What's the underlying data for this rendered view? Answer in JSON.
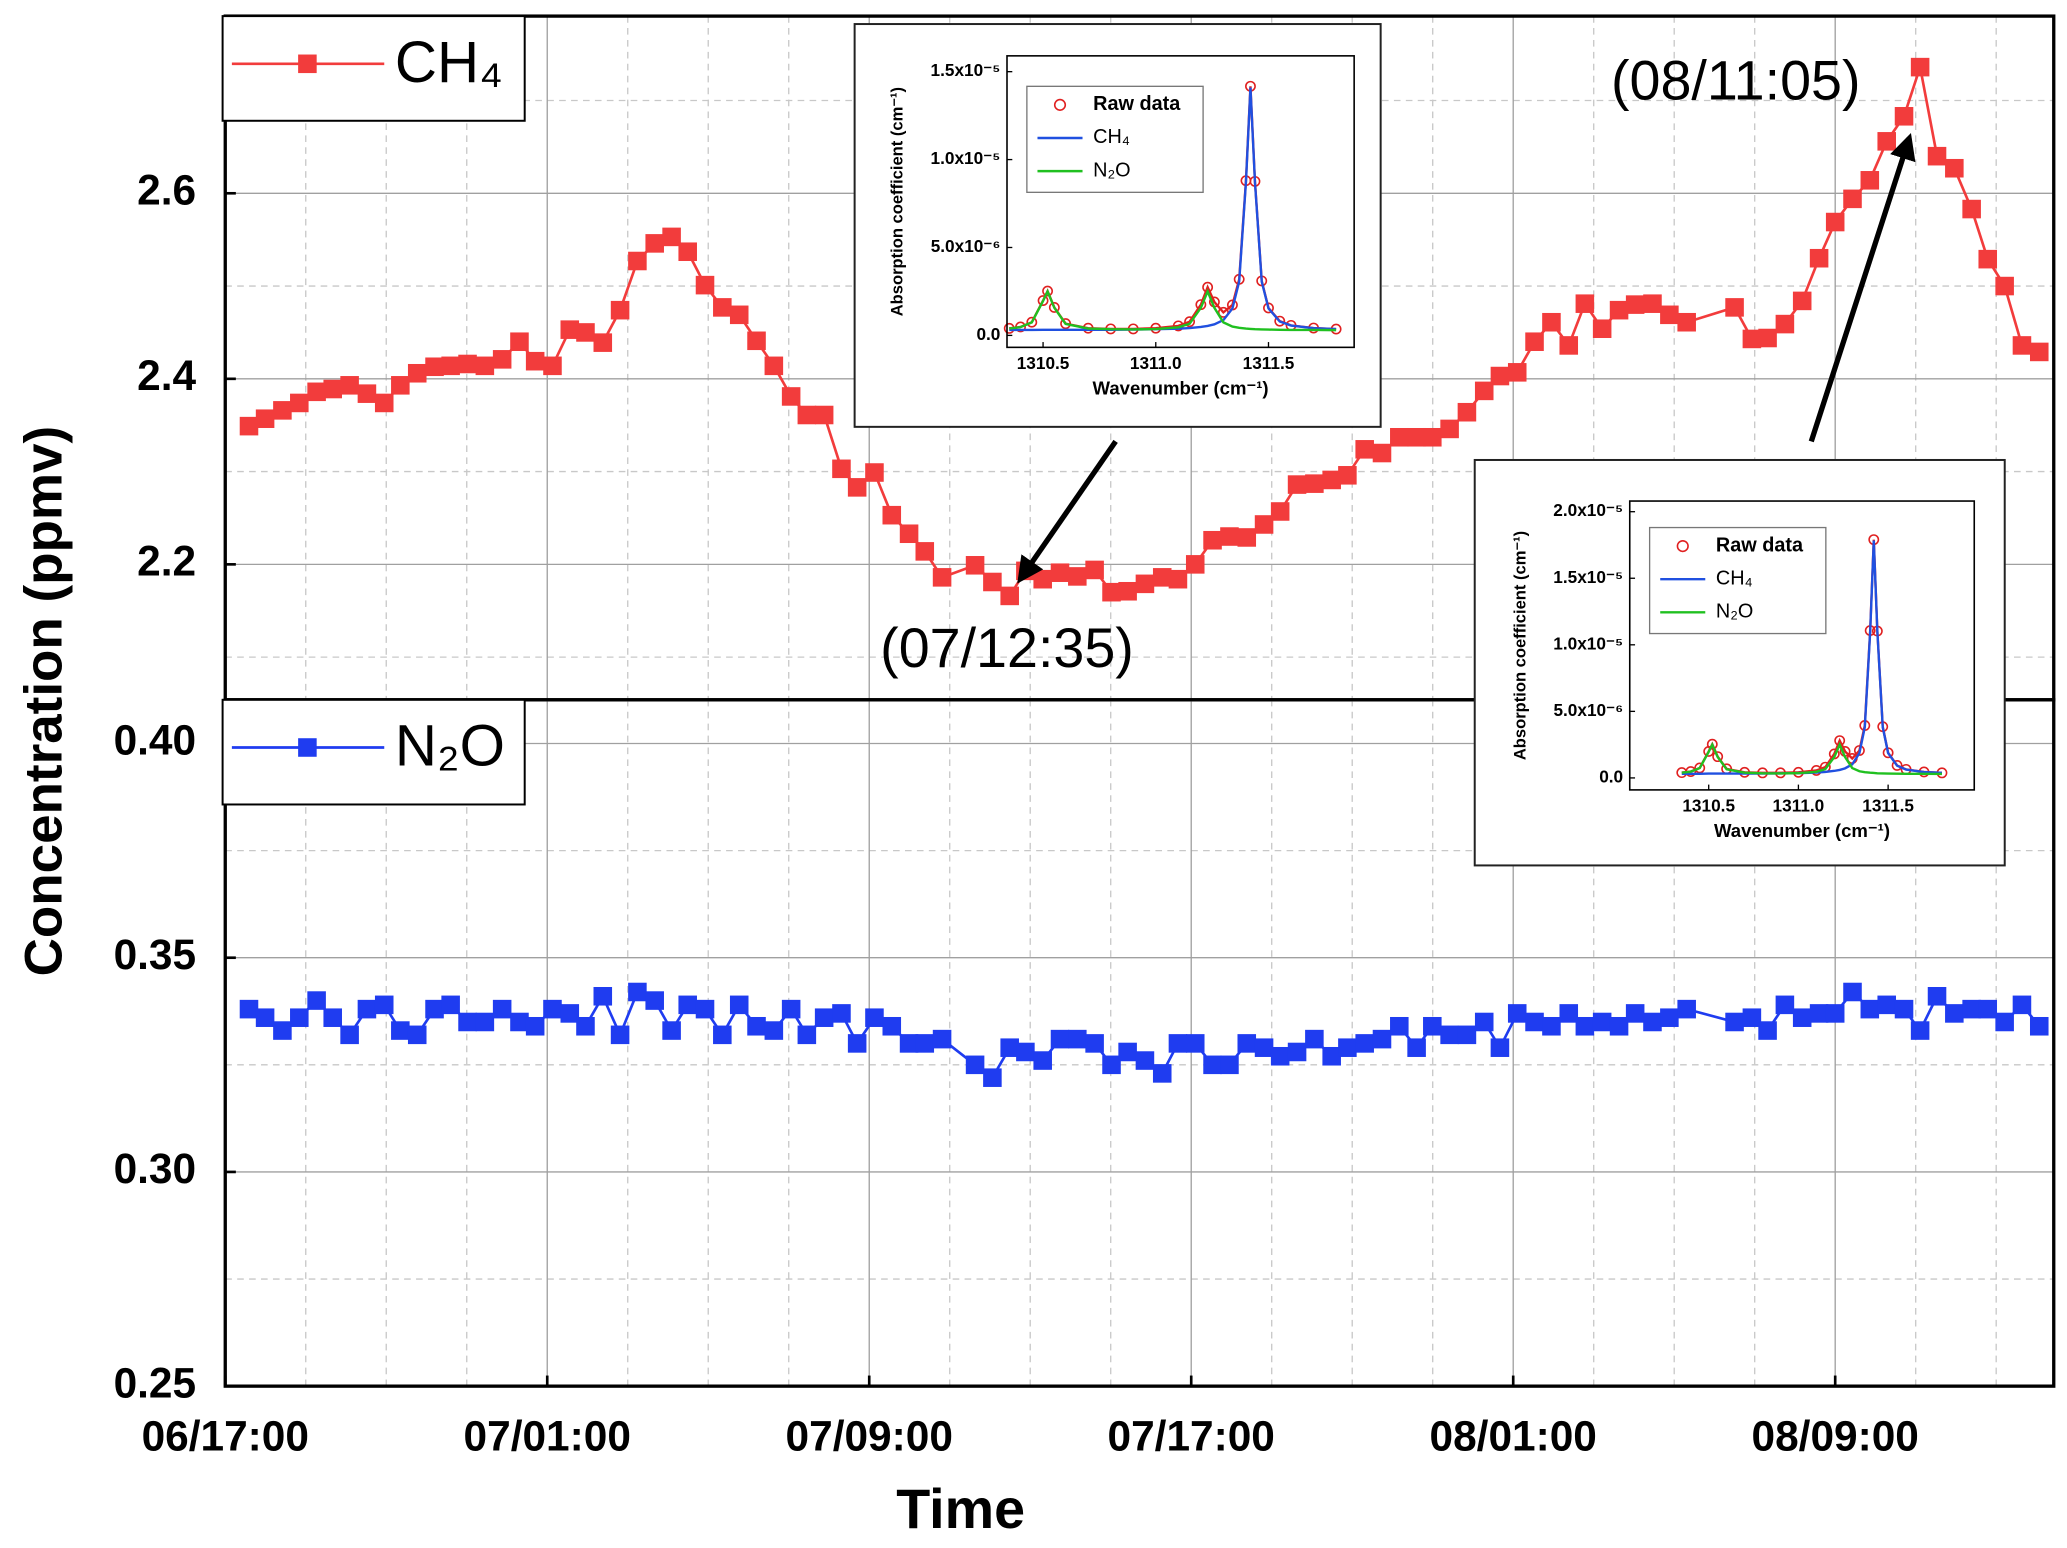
{
  "chart_data": [
    {
      "type": "line",
      "ylabel": "Concentration (ppmv)",
      "ylim": [
        2.054,
        2.791
      ],
      "yticks": [
        2.2,
        2.4,
        2.6
      ],
      "minor_yticks": [
        2.1,
        2.3,
        2.5,
        2.7
      ],
      "xlim": [
        0,
        45.43
      ],
      "grid": true,
      "legend": "upper left",
      "annotations": [
        "(07/12:35)",
        "(08/11:05)"
      ],
      "x": [
        0.59,
        0.99,
        1.42,
        1.84,
        2.27,
        2.67,
        3.09,
        3.52,
        3.95,
        4.35,
        4.77,
        5.2,
        5.6,
        6.02,
        6.45,
        6.88,
        7.31,
        7.7,
        8.13,
        8.56,
        8.95,
        9.38,
        9.81,
        10.24,
        10.67,
        11.09,
        11.49,
        11.92,
        12.35,
        12.77,
        13.2,
        13.63,
        14.06,
        14.45,
        14.88,
        15.31,
        15.7,
        16.13,
        16.56,
        16.99,
        17.38,
        17.81,
        18.63,
        19.06,
        19.49,
        19.88,
        20.31,
        20.74,
        21.17,
        21.6,
        22.02,
        22.42,
        22.85,
        23.28,
        23.67,
        24.1,
        24.53,
        24.95,
        25.38,
        25.81,
        26.21,
        26.63,
        27.06,
        27.49,
        27.88,
        28.31,
        28.74,
        29.17,
        29.6,
        29.99,
        30.42,
        30.85,
        31.28,
        31.67,
        32.1,
        32.53,
        32.95,
        33.38,
        33.78,
        34.21,
        34.63,
        35.03,
        35.46,
        35.88,
        36.31,
        37.5,
        37.93,
        38.32,
        38.75,
        39.18,
        39.6,
        40.0,
        40.43,
        40.86,
        41.28,
        41.71,
        42.11,
        42.53,
        42.96,
        43.39,
        43.79,
        44.21,
        44.64,
        45.07
      ],
      "series": [
        {
          "name": "CH₄",
          "color": "#f23c3c",
          "marker": "square",
          "values": [
            2.349,
            2.357,
            2.366,
            2.374,
            2.386,
            2.389,
            2.393,
            2.384,
            2.374,
            2.393,
            2.406,
            2.413,
            2.414,
            2.416,
            2.414,
            2.421,
            2.44,
            2.419,
            2.414,
            2.453,
            2.45,
            2.439,
            2.474,
            2.527,
            2.546,
            2.553,
            2.537,
            2.501,
            2.477,
            2.469,
            2.441,
            2.414,
            2.381,
            2.361,
            2.361,
            2.303,
            2.283,
            2.299,
            2.253,
            2.233,
            2.214,
            2.186,
            2.199,
            2.181,
            2.166,
            2.193,
            2.184,
            2.191,
            2.187,
            2.194,
            2.17,
            2.171,
            2.179,
            2.186,
            2.184,
            2.2,
            2.226,
            2.23,
            2.229,
            2.243,
            2.257,
            2.286,
            2.287,
            2.291,
            2.296,
            2.324,
            2.32,
            2.337,
            2.337,
            2.337,
            2.346,
            2.364,
            2.387,
            2.403,
            2.407,
            2.44,
            2.461,
            2.436,
            2.481,
            2.454,
            2.474,
            2.48,
            2.481,
            2.469,
            2.461,
            2.477,
            2.443,
            2.444,
            2.459,
            2.484,
            2.53,
            2.569,
            2.594,
            2.614,
            2.656,
            2.683,
            2.736,
            2.64,
            2.627,
            2.583,
            2.529,
            2.5,
            2.436,
            2.429
          ]
        }
      ]
    },
    {
      "type": "line",
      "xlabel": "Time",
      "ylim": [
        0.25,
        0.4102
      ],
      "yticks": [
        0.25,
        {
          "value": 0.3,
          "label": "0.30"
        },
        0.35,
        {
          "value": 0.4,
          "label": "0.40"
        }
      ],
      "minor_yticks": [
        0.275,
        0.325,
        0.375
      ],
      "xlim": [
        0,
        45.43
      ],
      "xticks": [
        {
          "value": 0,
          "label": "06/17:00"
        },
        {
          "value": 8,
          "label": "07/01:00"
        },
        {
          "value": 16,
          "label": "07/09:00"
        },
        {
          "value": 24,
          "label": "07/17:00"
        },
        {
          "value": 32,
          "label": "08/01:00"
        },
        {
          "value": 40,
          "label": "08/09:00"
        }
      ],
      "minor_xticks": [
        2,
        4,
        6,
        10,
        12,
        14,
        18,
        20,
        22,
        26,
        28,
        30,
        34,
        36,
        38,
        42,
        44
      ],
      "grid": true,
      "legend": "upper left",
      "x": [
        0.59,
        0.99,
        1.42,
        1.84,
        2.27,
        2.67,
        3.09,
        3.52,
        3.95,
        4.35,
        4.77,
        5.2,
        5.6,
        6.02,
        6.45,
        6.88,
        7.31,
        7.7,
        8.13,
        8.56,
        8.95,
        9.38,
        9.81,
        10.24,
        10.67,
        11.09,
        11.49,
        11.92,
        12.35,
        12.77,
        13.2,
        13.63,
        14.06,
        14.45,
        14.88,
        15.31,
        15.7,
        16.13,
        16.56,
        16.99,
        17.38,
        17.81,
        18.63,
        19.06,
        19.49,
        19.88,
        20.31,
        20.74,
        21.17,
        21.6,
        22.02,
        22.42,
        22.85,
        23.28,
        23.67,
        24.1,
        24.53,
        24.95,
        25.38,
        25.81,
        26.21,
        26.63,
        27.06,
        27.49,
        27.88,
        28.31,
        28.74,
        29.17,
        29.6,
        29.99,
        30.42,
        30.85,
        31.28,
        31.67,
        32.1,
        32.53,
        32.95,
        33.38,
        33.78,
        34.21,
        34.63,
        35.03,
        35.46,
        35.88,
        36.31,
        37.5,
        37.93,
        38.32,
        38.75,
        39.18,
        39.6,
        40.0,
        40.43,
        40.86,
        41.28,
        41.71,
        42.11,
        42.53,
        42.96,
        43.39,
        43.79,
        44.21,
        44.64,
        45.07
      ],
      "series": [
        {
          "name": "N₂O",
          "color": "#1f3cf0",
          "marker": "square",
          "values": [
            0.338,
            0.336,
            0.333,
            0.336,
            0.34,
            0.336,
            0.332,
            0.338,
            0.339,
            0.333,
            0.332,
            0.338,
            0.339,
            0.335,
            0.335,
            0.338,
            0.335,
            0.334,
            0.338,
            0.337,
            0.334,
            0.341,
            0.332,
            0.342,
            0.34,
            0.333,
            0.339,
            0.338,
            0.332,
            0.339,
            0.334,
            0.333,
            0.338,
            0.332,
            0.336,
            0.337,
            0.33,
            0.336,
            0.334,
            0.33,
            0.33,
            0.331,
            0.325,
            0.322,
            0.329,
            0.328,
            0.326,
            0.331,
            0.331,
            0.33,
            0.325,
            0.328,
            0.326,
            0.323,
            0.33,
            0.33,
            0.325,
            0.325,
            0.33,
            0.329,
            0.327,
            0.328,
            0.331,
            0.327,
            0.329,
            0.33,
            0.331,
            0.334,
            0.329,
            0.334,
            0.332,
            0.332,
            0.335,
            0.329,
            0.337,
            0.335,
            0.334,
            0.337,
            0.334,
            0.335,
            0.334,
            0.337,
            0.335,
            0.336,
            0.338,
            0.335,
            0.336,
            0.333,
            0.339,
            0.336,
            0.337,
            0.337,
            0.342,
            0.338,
            0.339,
            0.338,
            0.333,
            0.341,
            0.337,
            0.338,
            0.338,
            0.335,
            0.339,
            0.334
          ]
        }
      ]
    },
    {
      "type": "line",
      "xlabel": "Wavenumber (cm⁻¹)",
      "ylabel": "Absorption coefficient (cm⁻¹)",
      "xlim": [
        1310.34,
        1311.88
      ],
      "ylim": [
        -6.8e-07,
        1.59e-05
      ],
      "legend": "upper left",
      "xticks": [
        1310.5,
        {
          "value": 1311,
          "label": "1311.0"
        },
        1311.5
      ],
      "yticks": [
        {
          "value": 0,
          "label": "0.0"
        },
        {
          "value": 5e-06,
          "label": "5.0x10⁻⁶"
        },
        {
          "value": 1e-05,
          "label": "1.0x10⁻⁵"
        },
        {
          "value": 1.5e-05,
          "label": "1.5x10⁻⁵"
        }
      ],
      "x": [
        1310.35,
        1310.4,
        1310.45,
        1310.5,
        1310.52,
        1310.55,
        1310.6,
        1310.7,
        1310.8,
        1310.9,
        1311.0,
        1311.1,
        1311.15,
        1311.2,
        1311.23,
        1311.26,
        1311.3,
        1311.34,
        1311.37,
        1311.4,
        1311.42,
        1311.44,
        1311.47,
        1311.5,
        1311.55,
        1311.6,
        1311.7,
        1311.8
      ],
      "series": [
        {
          "name": "Raw data",
          "color": "#e02020",
          "marker": "circle",
          "values": [
            4e-07,
            4.8e-07,
            7.5e-07,
            1.98e-06,
            2.52e-06,
            1.59e-06,
            6.7e-07,
            4.1e-07,
            3.7e-07,
            3.7e-07,
            4.1e-07,
            5.4e-07,
            7.8e-07,
            1.75e-06,
            2.74e-06,
            1.9e-06,
            1.31e-06,
            1.73e-06,
            3.19e-06,
            8.8e-06,
            1.417e-05,
            8.76e-06,
            3.1e-06,
            1.56e-06,
            8.1e-07,
            5.7e-07,
            4.2e-07,
            3.6e-07
          ]
        },
        {
          "name": "CH₄",
          "color": "#2050e0",
          "values": [
            3.1e-07,
            3.1e-07,
            3.1e-07,
            3.2e-07,
            3.2e-07,
            3.2e-07,
            3.2e-07,
            3.2e-07,
            3.2e-07,
            3.3e-07,
            3.5e-07,
            3.8e-07,
            4.2e-07,
            4.8e-07,
            5.4e-07,
            6.3e-07,
            8.7e-07,
            1.53e-06,
            3.06e-06,
            8.71e-06,
            1.41e-05,
            8.71e-06,
            3.06e-06,
            1.53e-06,
            7.9e-07,
            5.6e-07,
            4.1e-07,
            3.6e-07
          ]
        },
        {
          "name": "N₂O",
          "color": "#20c020",
          "values": [
            3.9e-07,
            4.7e-07,
            7.4e-07,
            1.96e-06,
            2.5e-06,
            1.57e-06,
            6.5e-07,
            3.9e-07,
            3.5e-07,
            3.4e-07,
            3.6e-07,
            4.6e-07,
            6.6e-07,
            1.57e-06,
            2.5e-06,
            1.57e-06,
            7.4e-07,
            5e-07,
            4.3e-07,
            3.9e-07,
            3.7e-07,
            3.5e-07,
            3.4e-07,
            3.3e-07,
            3.2e-07,
            3.1e-07,
            3.1e-07,
            3e-07
          ]
        }
      ]
    },
    {
      "type": "line",
      "xlabel": "Wavenumber (cm⁻¹)",
      "ylabel": "Absorption coefficient (cm⁻¹)",
      "xlim": [
        1310.06,
        1311.98
      ],
      "ylim": [
        -9e-07,
        2.08e-05
      ],
      "legend": "upper left",
      "xticks": [
        1310.5,
        {
          "value": 1311,
          "label": "1311.0"
        },
        1311.5
      ],
      "yticks": [
        {
          "value": 0,
          "label": "0.0"
        },
        {
          "value": 5e-06,
          "label": "5.0x10⁻⁶"
        },
        {
          "value": 1e-05,
          "label": "1.0x10⁻⁵"
        },
        {
          "value": 1.5e-05,
          "label": "1.5x10⁻⁵"
        },
        {
          "value": 2e-05,
          "label": "2.0x10⁻⁵"
        }
      ],
      "x": [
        1310.35,
        1310.4,
        1310.45,
        1310.5,
        1310.52,
        1310.55,
        1310.6,
        1310.7,
        1310.8,
        1310.9,
        1311.0,
        1311.1,
        1311.15,
        1311.2,
        1311.23,
        1311.26,
        1311.3,
        1311.34,
        1311.37,
        1311.4,
        1311.42,
        1311.44,
        1311.47,
        1311.5,
        1311.55,
        1311.6,
        1311.7,
        1311.8
      ],
      "series": [
        {
          "name": "Raw data",
          "color": "#e02020",
          "marker": "circle",
          "values": [
            4e-07,
            4.8e-07,
            7.5e-07,
            1.99e-06,
            2.53e-06,
            1.6e-06,
            6.8e-07,
            4.2e-07,
            3.8e-07,
            3.8e-07,
            4.2e-07,
            5.6e-07,
            8.1e-07,
            1.8e-06,
            2.8e-06,
            1.99e-06,
            1.46e-06,
            2.06e-06,
            3.94e-06,
            1.107e-05,
            1.79e-05,
            1.103e-05,
            3.85e-06,
            1.89e-06,
            9.4e-07,
            6.4e-07,
            4.5e-07,
            3.8e-07
          ]
        },
        {
          "name": "CH₄",
          "color": "#2050e0",
          "values": [
            3.1e-07,
            3.1e-07,
            3.1e-07,
            3.3e-07,
            3.3e-07,
            3.3e-07,
            3.3e-07,
            3.3e-07,
            3.3e-07,
            3.4e-07,
            3.6e-07,
            4e-07,
            4.5e-07,
            5.3e-07,
            6e-07,
            7.2e-07,
            1.02e-06,
            1.86e-06,
            3.81e-06,
            1.098e-05,
            1.783e-05,
            1.098e-05,
            3.81e-06,
            1.86e-06,
            9.2e-07,
            6.3e-07,
            4.4e-07,
            3.8e-07
          ]
        },
        {
          "name": "N₂O",
          "color": "#20c020",
          "values": [
            3.9e-07,
            4.7e-07,
            7.4e-07,
            1.96e-06,
            2.5e-06,
            1.57e-06,
            6.5e-07,
            3.9e-07,
            3.5e-07,
            3.4e-07,
            3.6e-07,
            4.6e-07,
            6.6e-07,
            1.57e-06,
            2.5e-06,
            1.57e-06,
            7.4e-07,
            5e-07,
            4.3e-07,
            3.9e-07,
            3.7e-07,
            3.5e-07,
            3.4e-07,
            3.3e-07,
            3.2e-07,
            3.1e-07,
            3.1e-07,
            3e-07
          ]
        }
      ]
    }
  ]
}
